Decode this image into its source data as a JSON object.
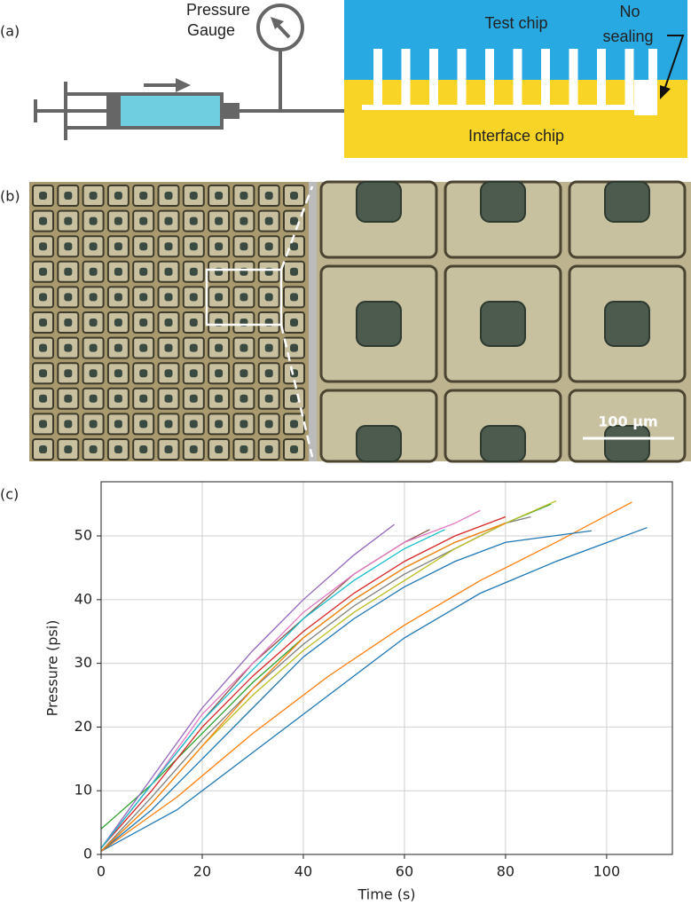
{
  "panel_a": {
    "label": "(a)",
    "gauge_label": [
      "Pressure",
      "Gauge"
    ],
    "test_chip": "Test chip",
    "no_sealing": [
      "No",
      "sealing"
    ],
    "interface_chip": "Interface chip"
  },
  "panel_b": {
    "label": "(b)",
    "scale_bar": "100 µm"
  },
  "panel_c": {
    "label": "(c)"
  },
  "chart_data": {
    "type": "line",
    "x_label": "Time (s)",
    "y_label": "Pressure (psi)",
    "xlim": [
      0,
      113
    ],
    "ylim": [
      0,
      58.5
    ],
    "xticks": [
      0,
      20,
      40,
      60,
      80,
      100
    ],
    "yticks": [
      0,
      10,
      20,
      30,
      40,
      50
    ],
    "grid": true,
    "series": [
      {
        "color": "#1f77b4",
        "x": [
          0,
          15,
          30,
          45,
          60,
          75,
          90,
          108
        ],
        "values": [
          0.5,
          7,
          16,
          25,
          34,
          41,
          46,
          51.3
        ]
      },
      {
        "color": "#ff7f0e",
        "x": [
          0,
          15,
          30,
          45,
          60,
          75,
          90,
          105
        ],
        "values": [
          0.5,
          9,
          19,
          28,
          36,
          43,
          49,
          55.3
        ]
      },
      {
        "color": "#2ca02c",
        "x": [
          0,
          10,
          20,
          30,
          40,
          50,
          60,
          70,
          80,
          89
        ],
        "values": [
          4,
          11,
          19,
          27,
          34,
          40,
          45,
          49,
          52,
          55
        ]
      },
      {
        "color": "#d62728",
        "x": [
          0,
          10,
          20,
          30,
          40,
          50,
          60,
          70,
          80
        ],
        "values": [
          1,
          10,
          20,
          28,
          35,
          41,
          46,
          50,
          53
        ]
      },
      {
        "color": "#9467bd",
        "x": [
          0,
          10,
          20,
          30,
          40,
          50,
          58
        ],
        "values": [
          1,
          12,
          23,
          32,
          40,
          47,
          51.8
        ]
      },
      {
        "color": "#8c564b",
        "x": [
          0,
          10,
          20,
          30,
          40,
          50,
          60,
          65
        ],
        "values": [
          1,
          11,
          21,
          30,
          37,
          44,
          49,
          51
        ]
      },
      {
        "color": "#e377c2",
        "x": [
          0,
          10,
          20,
          30,
          40,
          50,
          60,
          70,
          75
        ],
        "values": [
          1,
          11,
          22,
          30,
          38,
          44,
          49,
          52,
          54
        ]
      },
      {
        "color": "#7f7f7f",
        "x": [
          0,
          10,
          20,
          30,
          40,
          50,
          60,
          70,
          80,
          85
        ],
        "values": [
          0.5,
          9,
          18,
          26,
          33,
          39,
          44,
          48,
          52,
          53
        ]
      },
      {
        "color": "#bcbd22",
        "x": [
          0,
          10,
          20,
          30,
          40,
          50,
          60,
          70,
          80,
          90
        ],
        "values": [
          0.5,
          8,
          17,
          25,
          32,
          38,
          43,
          48,
          52,
          55.5
        ]
      },
      {
        "color": "#17becf",
        "x": [
          0,
          10,
          20,
          30,
          40,
          50,
          60,
          68
        ],
        "values": [
          1,
          11,
          21,
          29,
          37,
          43,
          48,
          51
        ]
      },
      {
        "color": "#1f77b4",
        "x": [
          0,
          10,
          20,
          30,
          40,
          50,
          60,
          70,
          80,
          97
        ],
        "values": [
          0.5,
          7,
          15,
          23,
          31,
          37,
          42,
          46,
          49,
          50.8
        ]
      },
      {
        "color": "#ff7f0e",
        "x": [
          0,
          10,
          20,
          30,
          40,
          50,
          60,
          70,
          80
        ],
        "values": [
          0.5,
          8,
          17,
          26,
          34,
          40,
          45,
          49,
          52
        ]
      }
    ]
  }
}
